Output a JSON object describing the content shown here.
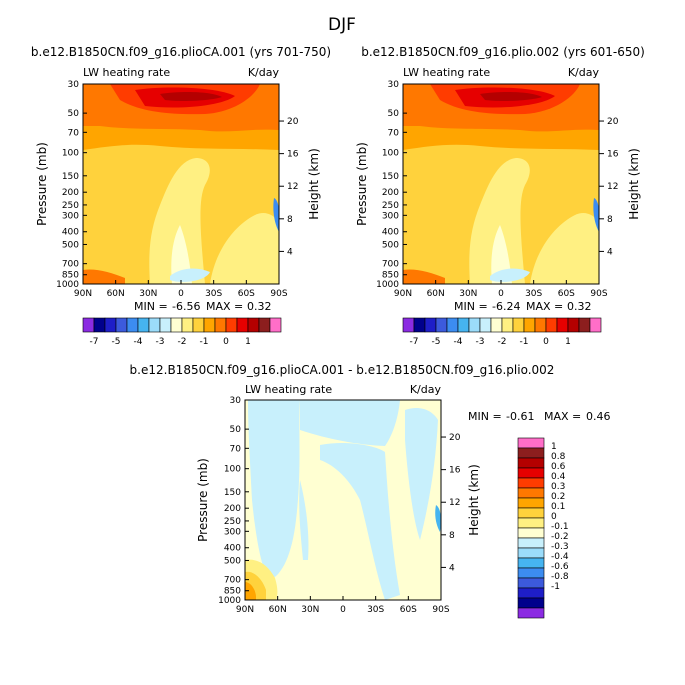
{
  "figure": {
    "title": "DJF"
  },
  "colors": {
    "full_fill": [
      "#8B2BE2",
      "#00008C",
      "#1E1EC8",
      "#3C5ADC",
      "#3C8CF0",
      "#46B4F0",
      "#9BDCFA",
      "#C8F0FC",
      "#FFFFD2",
      "#FFF082",
      "#FFD23C",
      "#FFA500",
      "#FF7800",
      "#FF3C00",
      "#E60000",
      "#B40000",
      "#8C1E1E",
      "#FF6EC8"
    ],
    "diff_fill": [
      "#8B2BE2",
      "#00008C",
      "#1E1EC8",
      "#3C5ADC",
      "#3C8CF0",
      "#46B4F0",
      "#9BDCFA",
      "#C8F0FC",
      "#FFFFD2",
      "#FFF082",
      "#FFD23C",
      "#FFA500",
      "#FF7800",
      "#FF3C00",
      "#E60000",
      "#B40000",
      "#8C1E1E",
      "#FF6EC8"
    ]
  },
  "chart_data": [
    {
      "type": "heatmap",
      "title": "b.e12.B1850CN.f09_g16.plioCA.001 (yrs 701-750)",
      "subtitle_left": "LW heating rate",
      "subtitle_right": "K/day",
      "xlabel": "",
      "ylabel": "Pressure (mb)",
      "ylabel_right": "Height (km)",
      "x_ticks": [
        "90N",
        "60N",
        "30N",
        "0",
        "30S",
        "60S",
        "90S"
      ],
      "y_ticks": [
        "30",
        "50",
        "70",
        "100",
        "150",
        "200",
        "250",
        "300",
        "400",
        "500",
        "700",
        "850",
        "1000"
      ],
      "y_ticks_right": [
        "20",
        "16",
        "12",
        "8",
        "4"
      ],
      "min_label": "MIN =",
      "min_value": "-6.56",
      "max_label": "MAX =",
      "max_value": "0.32",
      "levels": [
        "-7",
        "-5",
        "-4",
        "-3",
        "-2",
        "-1",
        "0",
        "1"
      ]
    },
    {
      "type": "heatmap",
      "title": "b.e12.B1850CN.f09_g16.plio.002 (yrs 601-650)",
      "subtitle_left": "LW heating rate",
      "subtitle_right": "K/day",
      "xlabel": "",
      "ylabel": "Pressure (mb)",
      "ylabel_right": "Height (km)",
      "x_ticks": [
        "90N",
        "60N",
        "30N",
        "0",
        "30S",
        "60S",
        "90S"
      ],
      "y_ticks": [
        "30",
        "50",
        "70",
        "100",
        "150",
        "200",
        "250",
        "300",
        "400",
        "500",
        "700",
        "850",
        "1000"
      ],
      "y_ticks_right": [
        "20",
        "16",
        "12",
        "8",
        "4"
      ],
      "min_label": "MIN =",
      "min_value": "-6.24",
      "max_label": "MAX =",
      "max_value": "0.32",
      "levels": [
        "-7",
        "-5",
        "-4",
        "-3",
        "-2",
        "-1",
        "0",
        "1"
      ]
    },
    {
      "type": "heatmap",
      "title": "b.e12.B1850CN.f09_g16.plioCA.001 - b.e12.B1850CN.f09_g16.plio.002",
      "subtitle_left": "LW heating rate",
      "subtitle_right": "K/day",
      "xlabel": "",
      "ylabel": "Pressure (mb)",
      "ylabel_right": "Height (km)",
      "x_ticks": [
        "90N",
        "60N",
        "30N",
        "0",
        "30S",
        "60S",
        "90S"
      ],
      "y_ticks": [
        "30",
        "50",
        "70",
        "100",
        "150",
        "200",
        "250",
        "300",
        "400",
        "500",
        "700",
        "850",
        "1000"
      ],
      "y_ticks_right": [
        "20",
        "16",
        "12",
        "8",
        "4"
      ],
      "min_label": "MIN =",
      "min_value": "-0.61",
      "max_label": "MAX =",
      "max_value": "0.46",
      "levels": [
        "1",
        "0.8",
        "0.6",
        "0.4",
        "0.3",
        "0.2",
        "0.1",
        "0",
        "-0.1",
        "-0.2",
        "-0.3",
        "-0.4",
        "-0.6",
        "-0.8",
        "-1"
      ]
    }
  ]
}
